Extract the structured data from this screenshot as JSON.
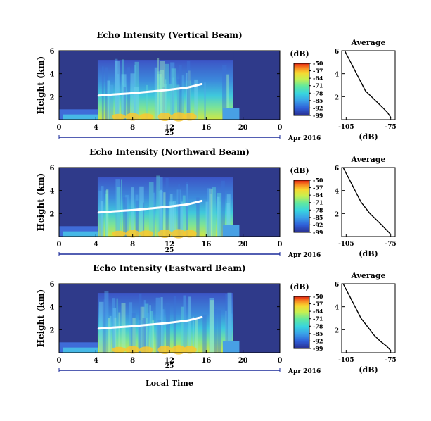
{
  "chart_data": [
    {
      "type": "heatmap",
      "title": "Echo Intensity (Vertical Beam)",
      "ylabel": "Height (km)",
      "xlabel": "",
      "x_ticks": [
        "0",
        "4",
        "8",
        "12",
        "16",
        "20",
        "0"
      ],
      "x_range_hours": [
        0,
        24
      ],
      "date_day": "25",
      "date_label": "Apr 2016",
      "y_ticks": [
        "2",
        "4",
        "6"
      ],
      "ylim": [
        0,
        6
      ],
      "colorbar": {
        "unit": "(dB)",
        "ticks": [
          "-50",
          "-57",
          "-64",
          "-71",
          "-78",
          "-85",
          "-92",
          "-99"
        ],
        "range": [
          -99,
          -50
        ]
      },
      "average": {
        "title": "Average",
        "xlabel": "(dB)",
        "x_ticks": [
          "-105",
          "-75"
        ],
        "xlim": [
          -108,
          -72
        ],
        "y_ticks": [
          "2",
          "4",
          "6"
        ],
        "height_km": [
          0.2,
          0.6,
          1.0,
          1.5,
          2.0,
          2.5,
          3.0,
          3.5,
          4.0,
          4.5,
          5.0,
          5.5,
          6.0
        ],
        "value_db": [
          -75,
          -77,
          -80,
          -84,
          -88,
          -92,
          -94,
          -96,
          -98,
          -100,
          -102,
          -104,
          -106
        ]
      },
      "melting_layer": {
        "hours": [
          4.3,
          6,
          8,
          10,
          12,
          14,
          15.5
        ],
        "height_km": [
          2.1,
          2.2,
          2.3,
          2.45,
          2.6,
          2.8,
          3.1
        ]
      }
    },
    {
      "type": "heatmap",
      "title": "Echo Intensity (Northward Beam)",
      "ylabel": "Height (km)",
      "xlabel": "",
      "x_ticks": [
        "0",
        "4",
        "8",
        "12",
        "16",
        "20",
        "0"
      ],
      "x_range_hours": [
        0,
        24
      ],
      "date_day": "25",
      "date_label": "Apr 2016",
      "y_ticks": [
        "2",
        "4",
        "6"
      ],
      "ylim": [
        0,
        6
      ],
      "colorbar": {
        "unit": "(dB)",
        "ticks": [
          "-50",
          "-57",
          "-64",
          "-71",
          "-78",
          "-85",
          "-92",
          "-99"
        ],
        "range": [
          -99,
          -50
        ]
      },
      "average": {
        "title": "Average",
        "xlabel": "(dB)",
        "x_ticks": [
          "-105",
          "-75"
        ],
        "xlim": [
          -108,
          -72
        ],
        "y_ticks": [
          "2",
          "4",
          "6"
        ],
        "height_km": [
          0.2,
          0.6,
          1.0,
          1.5,
          2.0,
          2.5,
          3.0,
          3.5,
          4.0,
          4.5,
          5.0,
          5.5,
          6.0
        ],
        "value_db": [
          -75,
          -78,
          -81,
          -85,
          -89,
          -92,
          -95,
          -97,
          -99,
          -101,
          -103,
          -105,
          -107
        ]
      },
      "melting_layer": {
        "hours": [
          4.3,
          6,
          8,
          10,
          12,
          14,
          15.5
        ],
        "height_km": [
          2.1,
          2.2,
          2.3,
          2.45,
          2.6,
          2.8,
          3.1
        ]
      }
    },
    {
      "type": "heatmap",
      "title": "Echo Intensity (Eastward Beam)",
      "ylabel": "Height (km)",
      "xlabel": "Local Time",
      "x_ticks": [
        "0",
        "4",
        "8",
        "12",
        "16",
        "20",
        "0"
      ],
      "x_range_hours": [
        0,
        24
      ],
      "date_day": "25",
      "date_label": "Apr 2016",
      "y_ticks": [
        "2",
        "4",
        "6"
      ],
      "ylim": [
        0,
        6
      ],
      "colorbar": {
        "unit": "(dB)",
        "ticks": [
          "-50",
          "-57",
          "-64",
          "-71",
          "-78",
          "-85",
          "-92",
          "-99"
        ],
        "range": [
          -99,
          -50
        ]
      },
      "average": {
        "title": "Average",
        "xlabel": "(dB)",
        "x_ticks": [
          "-105",
          "-75"
        ],
        "xlim": [
          -108,
          -72
        ],
        "y_ticks": [
          "2",
          "4",
          "6"
        ],
        "height_km": [
          0.2,
          0.6,
          1.0,
          1.5,
          2.0,
          2.5,
          3.0,
          3.5,
          4.0,
          4.5,
          5.0,
          5.5,
          6.0
        ],
        "value_db": [
          -75,
          -78,
          -82,
          -86,
          -89,
          -92,
          -95,
          -97,
          -99,
          -101,
          -103,
          -105,
          -107
        ]
      },
      "melting_layer": {
        "hours": [
          4.3,
          6,
          8,
          10,
          12,
          14,
          15.5
        ],
        "height_km": [
          2.1,
          2.2,
          2.3,
          2.45,
          2.6,
          2.8,
          3.1
        ]
      }
    }
  ],
  "colors": {
    "background_field": "#2f3a8a",
    "scale": [
      "#2a2f8f",
      "#2f5fd8",
      "#3aa0e8",
      "#38d4e0",
      "#60e8a0",
      "#c8f050",
      "#f8d830",
      "#f88020",
      "#e02010"
    ]
  }
}
